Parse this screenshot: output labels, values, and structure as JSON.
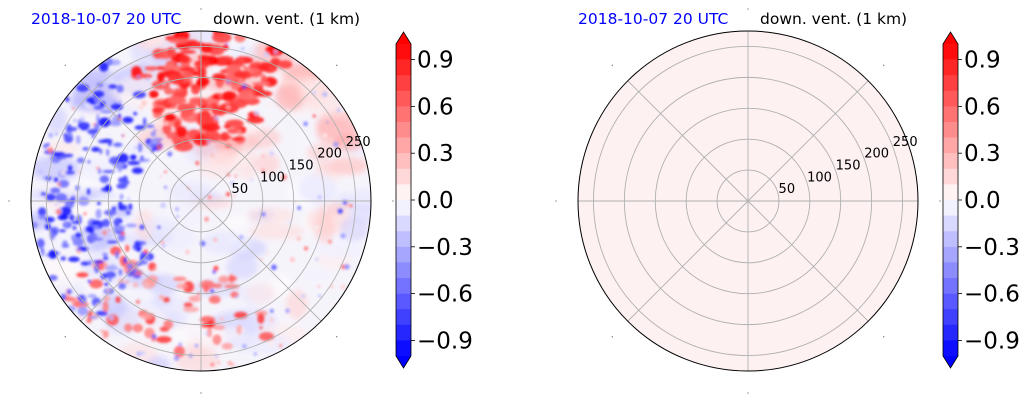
{
  "chart_data": [
    {
      "type": "heatmap",
      "projection": "polar",
      "title_left": "2018-10-07 20 UTC",
      "title_right": "down. vent. (1 km)",
      "title_left_color": "#0000ff",
      "radial_ticks": [
        "50",
        "100",
        "150",
        "200",
        "250"
      ],
      "radial_values": [
        50,
        100,
        150,
        200,
        250
      ],
      "rmax": 275,
      "angular_grid_deg": [
        0,
        45,
        90,
        135,
        180,
        225,
        270,
        315
      ],
      "field": "mixed positive/negative values; strong positive (red) band in upper-right sector, negative (blue) patches on left side",
      "colorbar": {
        "ticks": [
          "0.9",
          "0.6",
          "0.3",
          "0.0",
          "−0.3",
          "−0.6",
          "−0.9"
        ],
        "tick_values": [
          0.9,
          0.6,
          0.3,
          0.0,
          -0.3,
          -0.6,
          -0.9
        ],
        "vmin": -1.0,
        "vmax": 1.0,
        "cmap": "bwr",
        "extend": "both"
      }
    },
    {
      "type": "heatmap",
      "projection": "polar",
      "title_left": "2018-10-07 20 UTC",
      "title_right": "down. vent. (1 km)",
      "title_left_color": "#0000ff",
      "radial_ticks": [
        "50",
        "100",
        "150",
        "200",
        "250"
      ],
      "radial_values": [
        50,
        100,
        150,
        200,
        250
      ],
      "rmax": 275,
      "angular_grid_deg": [
        0,
        45,
        90,
        135,
        180,
        225,
        270,
        315
      ],
      "field": "uniform near-zero positive value",
      "fill_color": "#fdf1f1",
      "colorbar": {
        "ticks": [
          "0.9",
          "0.6",
          "0.3",
          "0.0",
          "−0.3",
          "−0.6",
          "−0.9"
        ],
        "tick_values": [
          0.9,
          0.6,
          0.3,
          0.0,
          -0.3,
          -0.6,
          -0.9
        ],
        "vmin": -1.0,
        "vmax": 1.0,
        "cmap": "bwr",
        "extend": "both"
      }
    }
  ]
}
